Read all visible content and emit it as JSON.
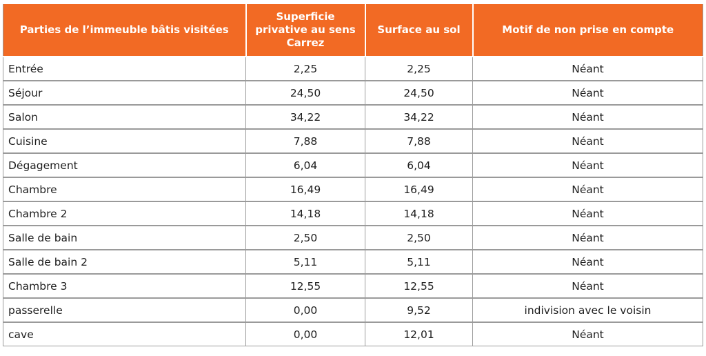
{
  "table": {
    "headers": [
      "Parties de l’immeuble bâtis visitées",
      "Superficie privative au sens Carrez",
      "Surface au sol",
      "Motif de non prise en compte"
    ],
    "rows": [
      [
        "Entrée",
        "2,25",
        "2,25",
        "Néant"
      ],
      [
        "Séjour",
        "24,50",
        "24,50",
        "Néant"
      ],
      [
        "Salon",
        "34,22",
        "34,22",
        "Néant"
      ],
      [
        "Cuisine",
        "7,88",
        "7,88",
        "Néant"
      ],
      [
        "Dégagement",
        "6,04",
        "6,04",
        "Néant"
      ],
      [
        "Chambre",
        "16,49",
        "16,49",
        "Néant"
      ],
      [
        "Chambre 2",
        "14,18",
        "14,18",
        "Néant"
      ],
      [
        "Salle de bain",
        "2,50",
        "2,50",
        "Néant"
      ],
      [
        "Salle de bain 2",
        "5,11",
        "5,11",
        "Néant"
      ],
      [
        "Chambre 3",
        "12,55",
        "12,55",
        "Néant"
      ],
      [
        "passerelle",
        "0,00",
        "9,52",
        "indivision avec le voisin"
      ],
      [
        "cave",
        "0,00",
        "12,01",
        "Néant"
      ]
    ]
  },
  "colors": {
    "header_background": "#f26a24",
    "header_text": "#ffffff",
    "border": "#9a9a9a"
  }
}
